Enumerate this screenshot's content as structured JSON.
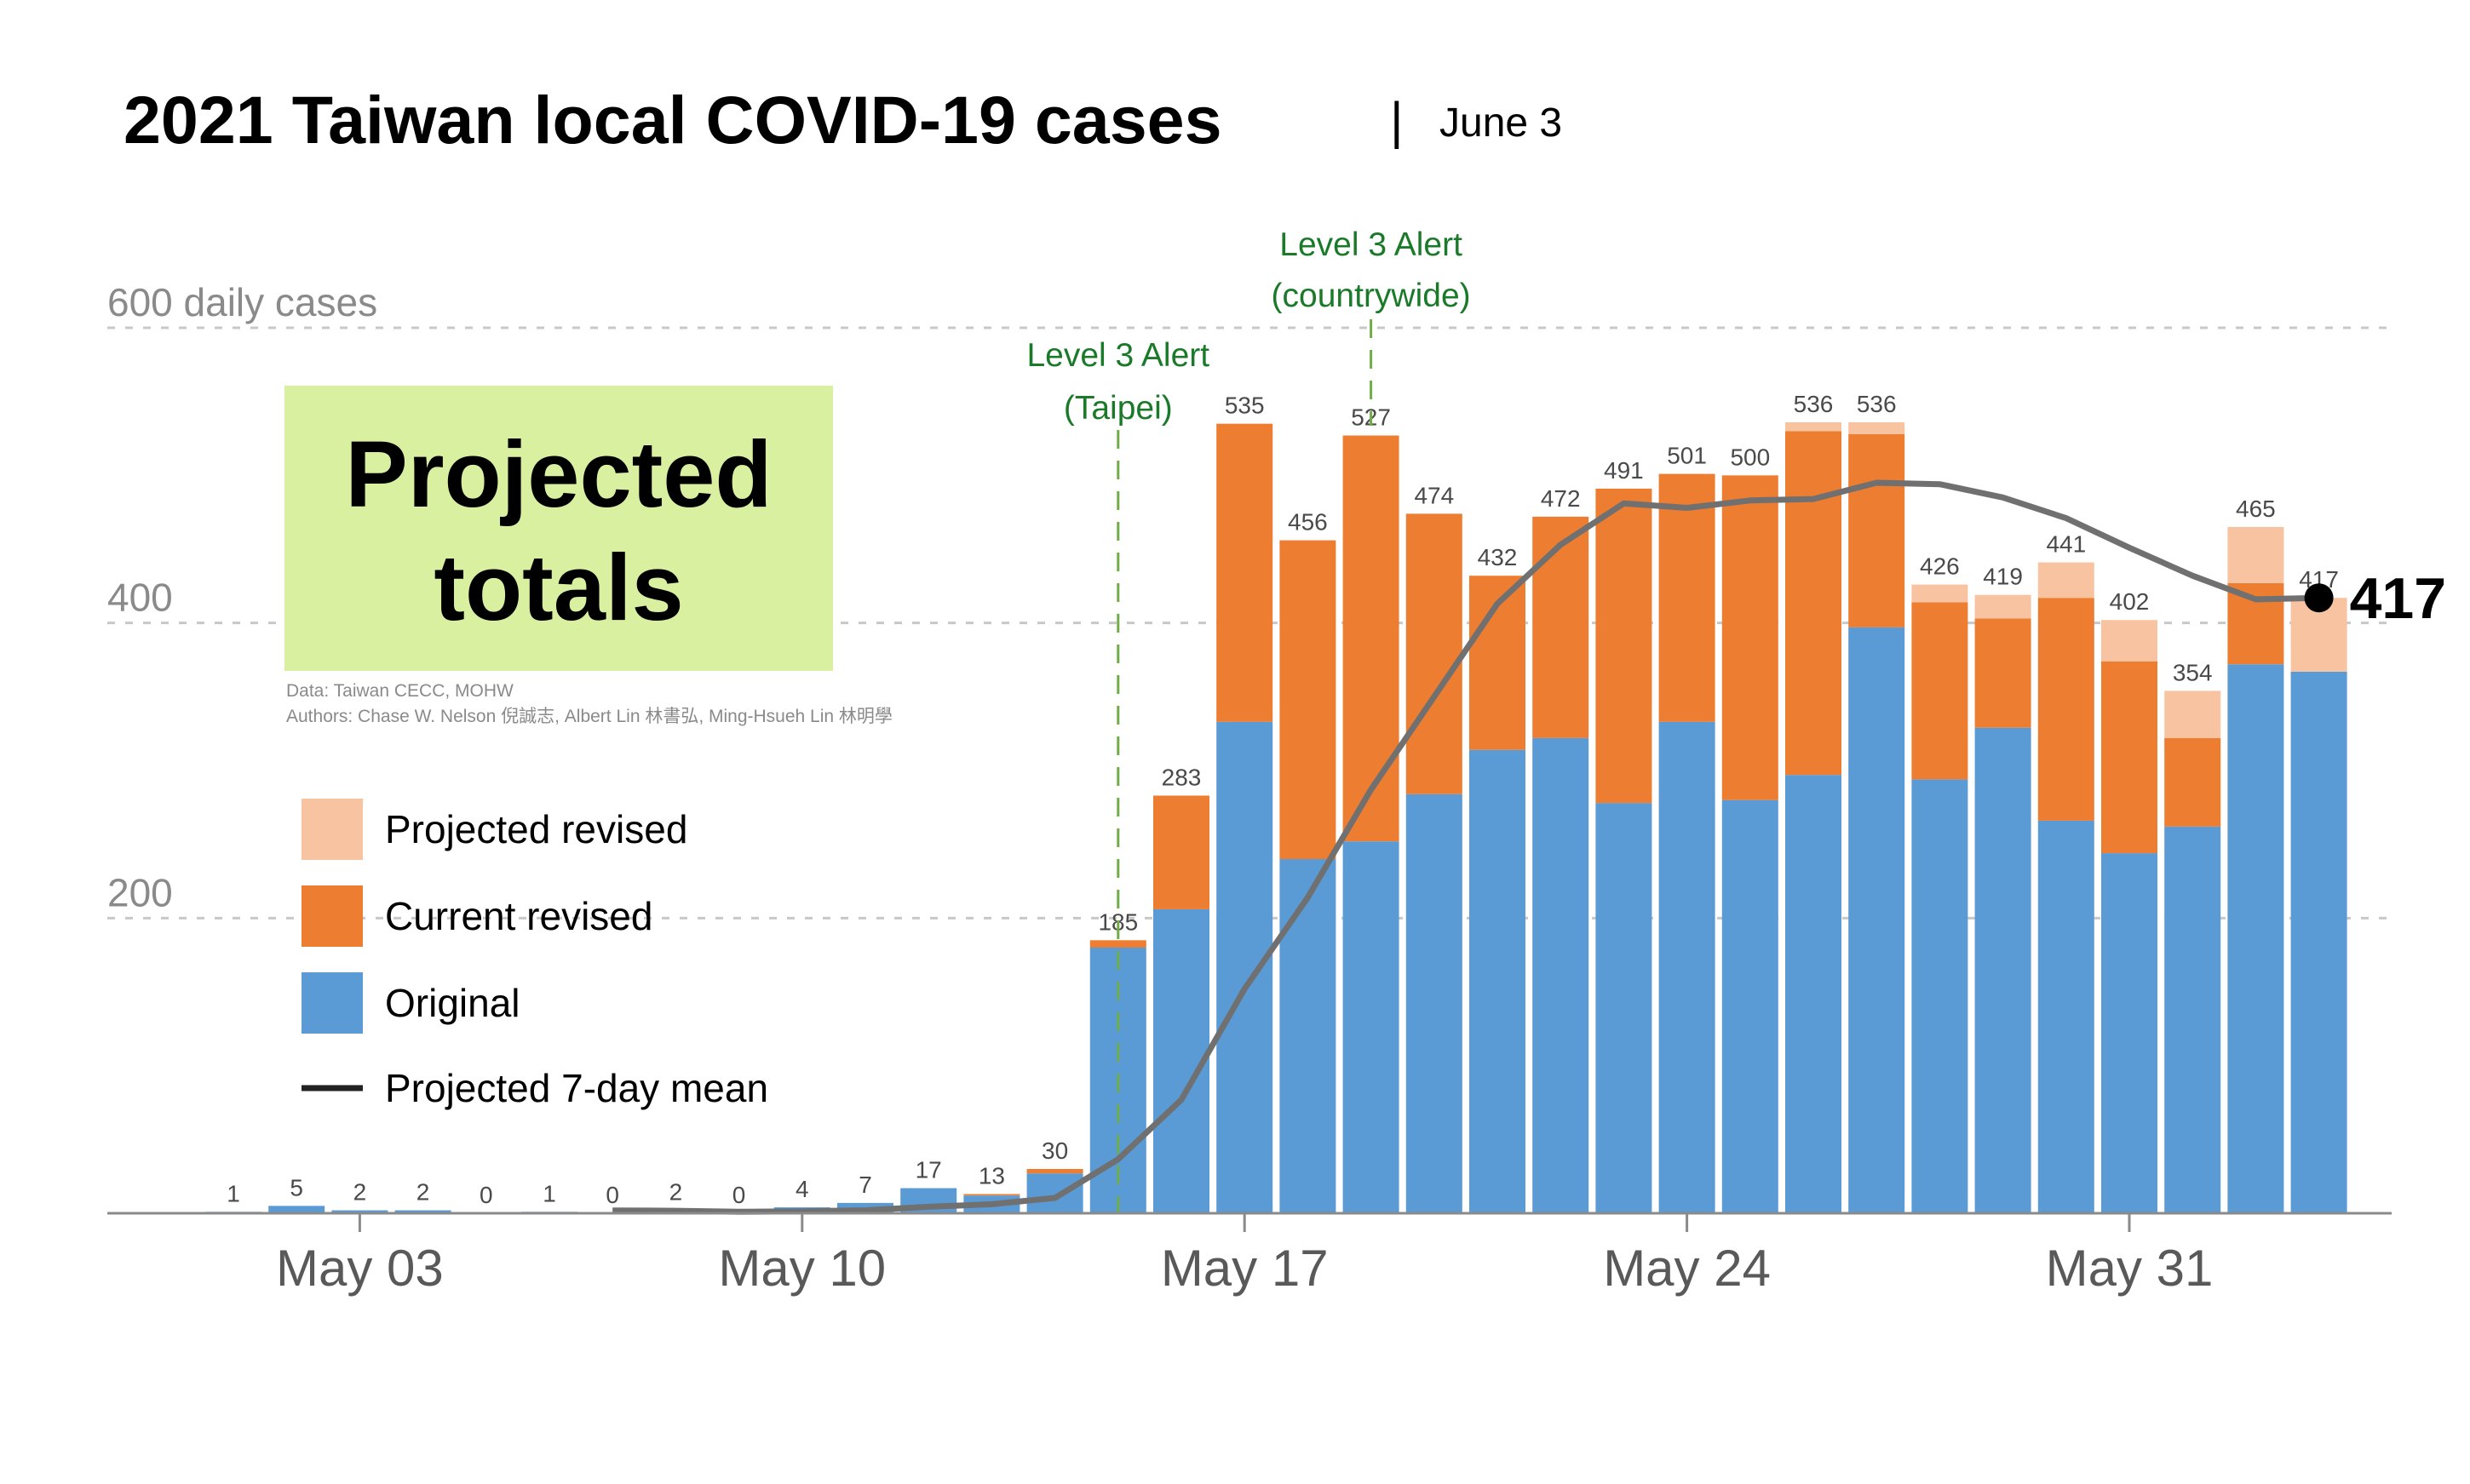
{
  "header": {
    "title": "2021 Taiwan local COVID-19 cases",
    "separator": "|",
    "date": "June 3"
  },
  "overlay": {
    "line1": "Projected",
    "line2": "totals",
    "credit_data": "Data: Taiwan CECC, MOHW",
    "credit_authors": "Authors: Chase W. Nelson 倪誠志, Albert Lin 林書弘, Ming-Hsueh Lin 林明學"
  },
  "annotations": [
    {
      "line1": "Level 3 Alert",
      "line2": "(Taipei)",
      "x": "May 15"
    },
    {
      "line1": "Level 3 Alert",
      "line2": "(countrywide)",
      "x": "May 19"
    }
  ],
  "colors": {
    "original": "#5b9bd5",
    "current_revised": "#ed7d31",
    "projected_revised": "#f8c3a0",
    "mean_line": "#707070",
    "alert_line": "#70ad47",
    "grid": "#c8c8c8",
    "axis": "#8a8a8a",
    "overlay_bg": "#d8f0a0"
  },
  "chart_data": {
    "type": "bar",
    "stacked": true,
    "categories": [
      "May 01",
      "May 02",
      "May 03",
      "May 04",
      "May 05",
      "May 06",
      "May 07",
      "May 08",
      "May 09",
      "May 10",
      "May 11",
      "May 12",
      "May 13",
      "May 14",
      "May 15",
      "May 16",
      "May 17",
      "May 18",
      "May 19",
      "May 20",
      "May 21",
      "May 22",
      "May 23",
      "May 24",
      "May 25",
      "May 26",
      "May 27",
      "May 28",
      "May 29",
      "May 30",
      "May 31",
      "Jun 01",
      "Jun 02",
      "Jun 03"
    ],
    "x_ticks": [
      "May 03",
      "May 10",
      "May 17",
      "May 24",
      "May 31"
    ],
    "y_ticks": [
      200,
      400,
      600
    ],
    "y_tick_labels": [
      "200",
      "400",
      "600 daily cases"
    ],
    "ylim": [
      0,
      620
    ],
    "grid": true,
    "legend_position": "left",
    "totals": [
      1,
      5,
      2,
      2,
      0,
      1,
      0,
      2,
      0,
      4,
      7,
      17,
      13,
      30,
      185,
      283,
      535,
      456,
      527,
      474,
      432,
      472,
      491,
      501,
      500,
      536,
      536,
      426,
      419,
      441,
      402,
      354,
      465,
      417
    ],
    "series": [
      {
        "name": "Projected revised",
        "values": [
          0,
          0,
          0,
          0,
          0,
          0,
          0,
          0,
          0,
          0,
          0,
          0,
          0,
          0,
          0,
          0,
          0,
          0,
          0,
          0,
          0,
          0,
          0,
          0,
          0,
          6,
          8,
          12,
          16,
          24,
          28,
          32,
          38,
          50
        ]
      },
      {
        "name": "Current revised",
        "values": [
          0,
          0,
          0,
          0,
          0,
          0,
          0,
          0,
          0,
          0,
          0,
          0,
          1,
          3,
          5,
          77,
          202,
          216,
          275,
          190,
          118,
          150,
          213,
          168,
          220,
          233,
          131,
          120,
          74,
          151,
          130,
          60,
          55,
          0
        ]
      },
      {
        "name": "Original",
        "values": [
          1,
          5,
          2,
          2,
          0,
          1,
          0,
          2,
          0,
          4,
          7,
          17,
          12,
          27,
          180,
          206,
          333,
          240,
          252,
          284,
          314,
          322,
          278,
          333,
          280,
          297,
          397,
          294,
          329,
          266,
          244,
          262,
          372,
          367
        ]
      }
    ],
    "mean_line": {
      "name": "Projected 7-day mean",
      "values": [
        null,
        null,
        null,
        null,
        null,
        null,
        1.9,
        1.7,
        1.0,
        1.3,
        2.0,
        4.4,
        6.1,
        10.4,
        36.6,
        76.9,
        152,
        214,
        287,
        350,
        413,
        453,
        481,
        478,
        483,
        484,
        495,
        494,
        485,
        471,
        451,
        432,
        416,
        417
      ],
      "end_label": "417"
    }
  }
}
